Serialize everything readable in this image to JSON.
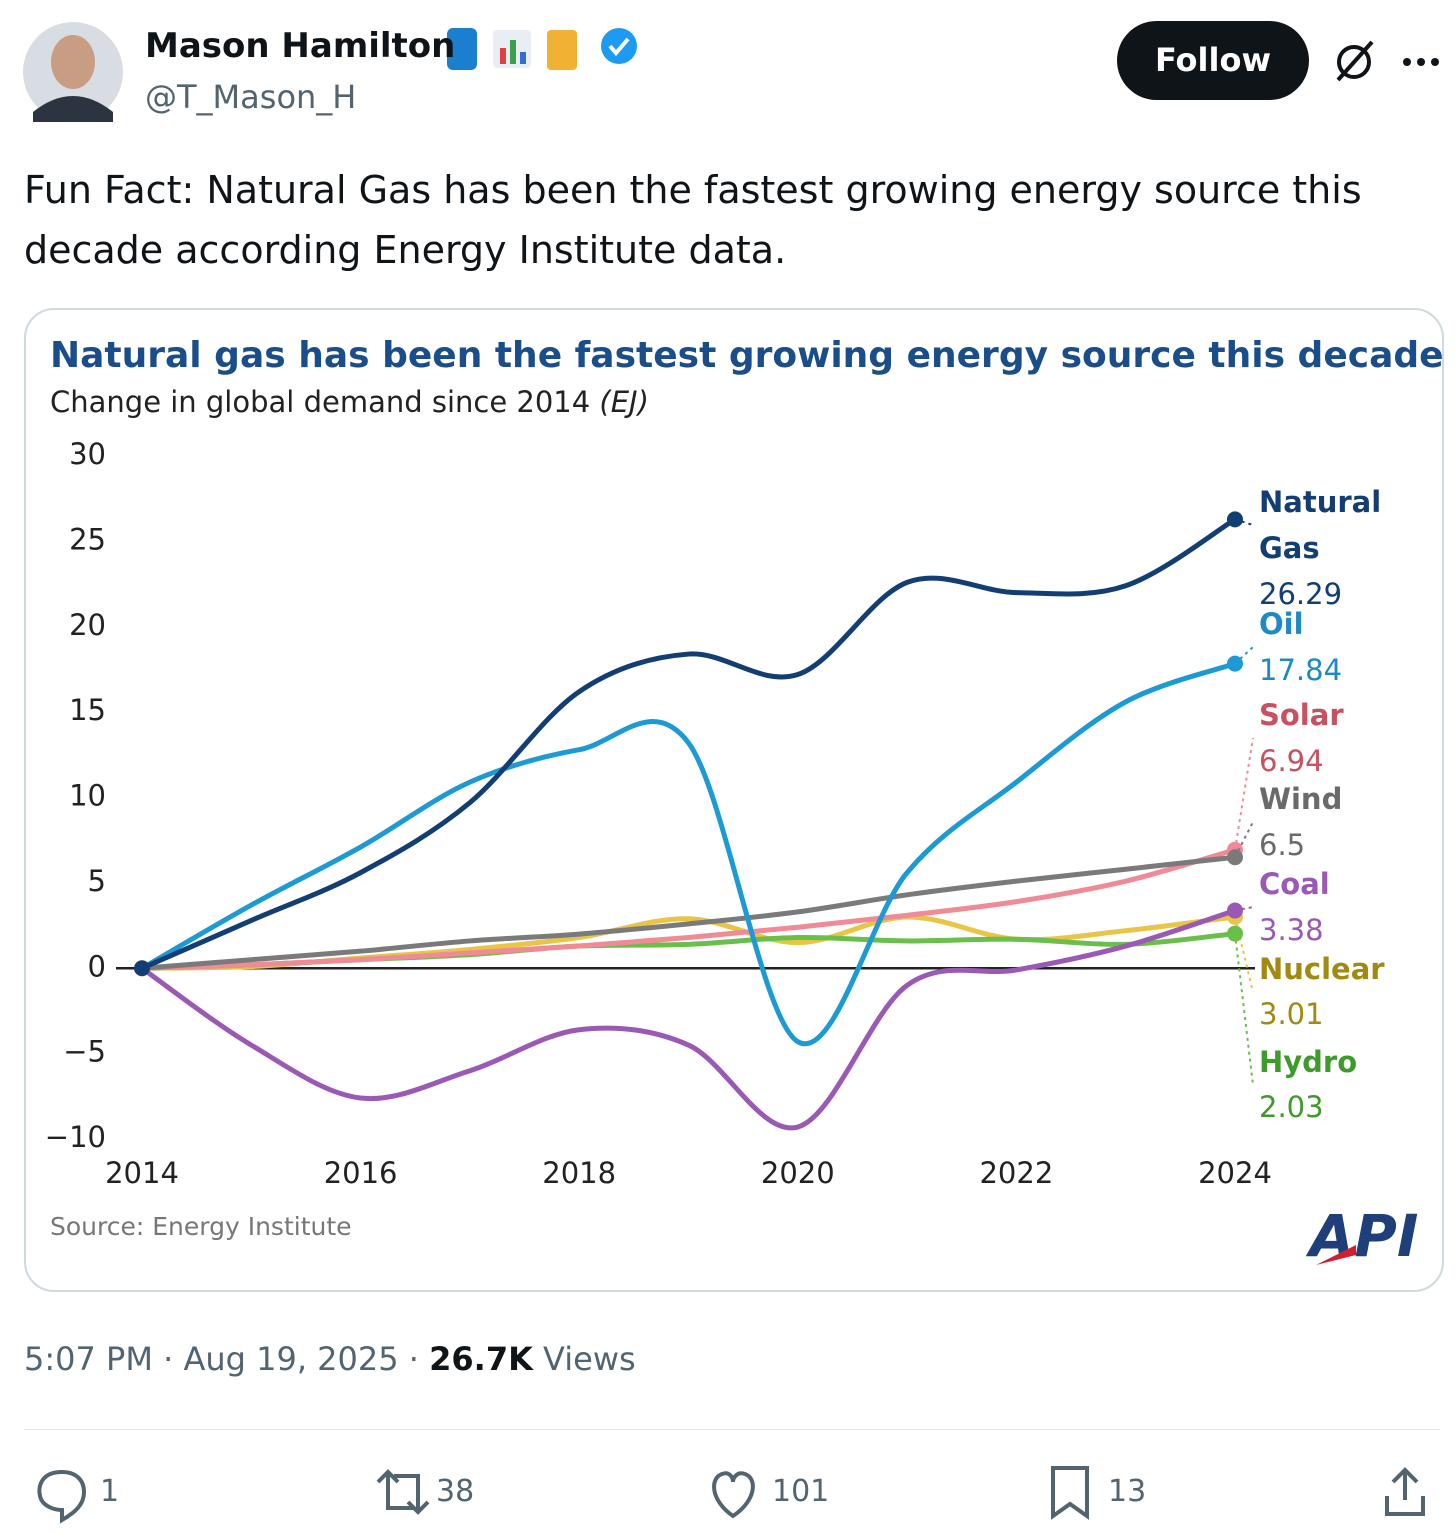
{
  "header": {
    "name": "Mason Hamilton",
    "handle": "@T_Mason_H",
    "follow": "Follow"
  },
  "text": "Fun Fact: Natural Gas has been the fastest growing energy source this decade according Energy Institute data.",
  "chart_data": {
    "type": "line",
    "title": "Natural gas has been the fastest growing energy source this decade",
    "subtitle": "Change in global demand since 2014",
    "subtitle_unit": "(EJ)",
    "source": "Source: Energy Institute",
    "logo": "API",
    "x": [
      2014,
      2015,
      2016,
      2017,
      2018,
      2019,
      2020,
      2021,
      2022,
      2023,
      2024
    ],
    "xlim": [
      2014,
      2024
    ],
    "xticks": [
      2014,
      2016,
      2018,
      2020,
      2022,
      2024
    ],
    "ylim": [
      -10,
      30
    ],
    "yticks": [
      {
        "value": -10,
        "label": "−10"
      },
      {
        "value": -5,
        "label": "−5"
      },
      0,
      5,
      10,
      15,
      20,
      25,
      30
    ],
    "series": [
      {
        "name": "Natural Gas",
        "color": "#123e74",
        "label_color": "#123e74",
        "values": [
          0,
          2.8,
          5.6,
          9.7,
          16.2,
          18.4,
          17.2,
          22.6,
          22.0,
          22.4,
          26.29
        ]
      },
      {
        "name": "Oil",
        "color": "#1b9ad6",
        "label_color": "#1b8ac6",
        "values": [
          0,
          3.7,
          7.1,
          10.9,
          12.8,
          13.2,
          -4.3,
          5.6,
          10.9,
          15.6,
          17.84
        ]
      },
      {
        "name": "Solar",
        "color": "#f08a96",
        "label_color": "#c9505f",
        "values": [
          0,
          0.2,
          0.5,
          0.9,
          1.3,
          1.8,
          2.4,
          3.1,
          3.9,
          5.1,
          6.94
        ]
      },
      {
        "name": "Wind",
        "color": "#7a7a7a",
        "label_color": "#6a6a6a",
        "values": [
          0,
          0.5,
          1.0,
          1.6,
          2.0,
          2.6,
          3.3,
          4.3,
          5.1,
          5.8,
          6.5
        ]
      },
      {
        "name": "Coal",
        "color": "#9b59b6",
        "label_color": "#9b59b6",
        "values": [
          0,
          -4.5,
          -7.6,
          -6.0,
          -3.6,
          -4.5,
          -9.3,
          -1.0,
          -0.1,
          1.3,
          3.38
        ]
      },
      {
        "name": "Nuclear",
        "color": "#e8c547",
        "label_color": "#a08a10",
        "values": [
          0,
          0.1,
          0.6,
          1.1,
          1.8,
          2.9,
          1.5,
          3.0,
          1.7,
          2.2,
          3.01
        ]
      },
      {
        "name": "Hydro",
        "color": "#6abf4b",
        "label_color": "#3e9a2a",
        "values": [
          0,
          0.2,
          0.5,
          0.8,
          1.3,
          1.4,
          1.8,
          1.6,
          1.7,
          1.4,
          2.03
        ]
      }
    ]
  },
  "footer": {
    "time": "5:07 PM",
    "separator": "·",
    "date": "Aug 19, 2025",
    "views": "26.7K",
    "views_label": "Views"
  },
  "actions": {
    "replies": 1,
    "reposts": 38,
    "likes": 101,
    "bookmarks": 13
  }
}
